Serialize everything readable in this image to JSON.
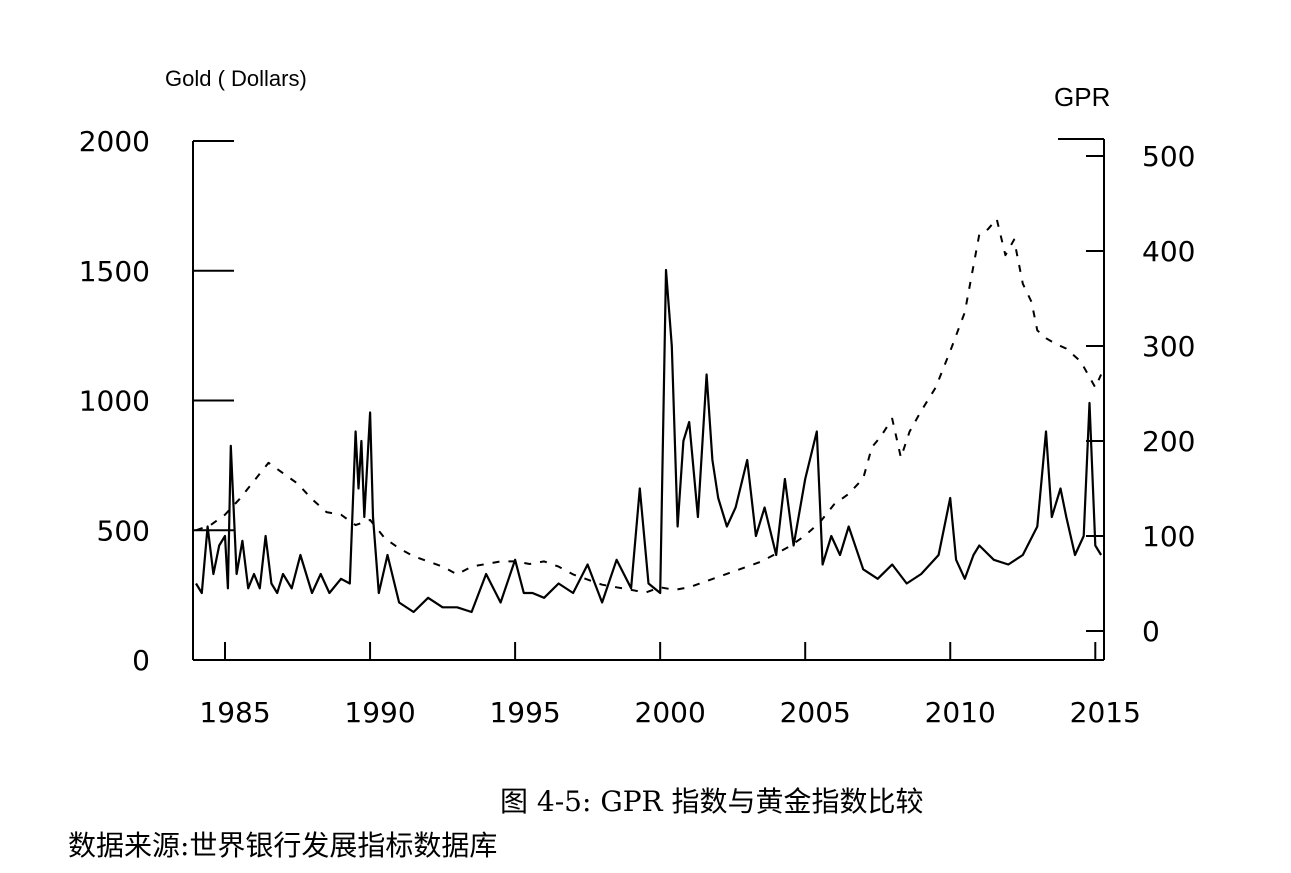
{
  "caption": "图 4-5: GPR 指数与黄金指数比较",
  "source": "数据来源:世界银行发展指标数据库",
  "chart_data": {
    "type": "line",
    "left_axis": {
      "label": "Gold ( Dollars)",
      "range": [
        0,
        2000
      ],
      "ticks": [
        0,
        500,
        1000,
        1500,
        2000
      ]
    },
    "right_axis": {
      "label": "GPR",
      "range": [
        0,
        500
      ],
      "ticks": [
        0,
        100,
        200,
        300,
        400,
        500
      ]
    },
    "x_axis": {
      "range": [
        1984,
        2015.3
      ],
      "ticks": [
        1985,
        1990,
        1995,
        2000,
        2005,
        2010,
        2015
      ]
    },
    "legend": "none",
    "grid": false,
    "series": [
      {
        "axis": "left",
        "style": "dashed",
        "x": [
          1984.0,
          1984.5,
          1985.0,
          1985.5,
          1986.0,
          1986.5,
          1987.0,
          1987.5,
          1988.0,
          1988.5,
          1989.0,
          1989.5,
          1990.0,
          1990.5,
          1991.0,
          1991.5,
          1992.0,
          1992.5,
          1993.0,
          1993.5,
          1994.0,
          1994.5,
          1995.0,
          1995.5,
          1996.0,
          1996.5,
          1997.0,
          1997.5,
          1998.0,
          1998.5,
          1999.0,
          1999.5,
          2000.0,
          2000.5,
          2001.0,
          2001.5,
          2002.0,
          2002.5,
          2003.0,
          2003.5,
          2004.0,
          2004.5,
          2005.0,
          2005.5,
          2006.0,
          2006.5,
          2007.0,
          2007.3,
          2007.6,
          2008.0,
          2008.3,
          2008.6,
          2009.0,
          2009.5,
          2010.0,
          2010.5,
          2010.8,
          2011.0,
          2011.3,
          2011.6,
          2011.9,
          2012.2,
          2012.5,
          2012.8,
          2013.0,
          2013.3,
          2013.6,
          2014.0,
          2014.5,
          2015.0,
          2015.2
        ],
        "values": [
          500,
          520,
          560,
          620,
          690,
          760,
          720,
          680,
          620,
          570,
          560,
          520,
          540,
          470,
          430,
          400,
          380,
          360,
          330,
          360,
          370,
          380,
          380,
          370,
          380,
          360,
          330,
          310,
          290,
          280,
          270,
          260,
          280,
          270,
          280,
          300,
          320,
          340,
          360,
          380,
          410,
          440,
          480,
          530,
          600,
          640,
          700,
          820,
          860,
          930,
          780,
          880,
          960,
          1050,
          1190,
          1340,
          1520,
          1640,
          1660,
          1700,
          1560,
          1620,
          1450,
          1380,
          1270,
          1240,
          1220,
          1200,
          1150,
          1050,
          1100
        ]
      },
      {
        "axis": "right",
        "style": "solid",
        "x": [
          1984.0,
          1984.2,
          1984.4,
          1984.6,
          1984.8,
          1985.0,
          1985.1,
          1985.2,
          1985.4,
          1985.6,
          1985.8,
          1986.0,
          1986.2,
          1986.4,
          1986.6,
          1986.8,
          1987.0,
          1987.3,
          1987.6,
          1988.0,
          1988.3,
          1988.6,
          1989.0,
          1989.3,
          1989.5,
          1989.6,
          1989.7,
          1989.8,
          1990.0,
          1990.1,
          1990.3,
          1990.6,
          1991.0,
          1991.5,
          1992.0,
          1992.5,
          1993.0,
          1993.5,
          1994.0,
          1994.5,
          1995.0,
          1995.3,
          1995.6,
          1996.0,
          1996.5,
          1997.0,
          1997.5,
          1998.0,
          1998.5,
          1999.0,
          1999.3,
          1999.6,
          2000.0,
          2000.2,
          2000.4,
          2000.6,
          2000.8,
          2001.0,
          2001.3,
          2001.6,
          2001.8,
          2002.0,
          2002.3,
          2002.6,
          2003.0,
          2003.3,
          2003.6,
          2004.0,
          2004.3,
          2004.6,
          2005.0,
          2005.4,
          2005.6,
          2005.9,
          2006.2,
          2006.5,
          2007.0,
          2007.5,
          2008.0,
          2008.5,
          2009.0,
          2009.3,
          2009.6,
          2010.0,
          2010.2,
          2010.5,
          2010.8,
          2011.0,
          2011.5,
          2012.0,
          2012.5,
          2013.0,
          2013.3,
          2013.5,
          2013.8,
          2014.0,
          2014.3,
          2014.6,
          2014.8,
          2015.0,
          2015.2
        ],
        "values": [
          50,
          40,
          110,
          60,
          90,
          100,
          45,
          195,
          60,
          95,
          45,
          60,
          45,
          100,
          50,
          40,
          60,
          45,
          80,
          40,
          60,
          40,
          55,
          50,
          210,
          150,
          200,
          120,
          230,
          120,
          40,
          80,
          30,
          20,
          35,
          25,
          25,
          20,
          60,
          30,
          75,
          40,
          40,
          35,
          50,
          40,
          70,
          30,
          75,
          45,
          150,
          50,
          40,
          380,
          300,
          110,
          200,
          220,
          120,
          270,
          180,
          140,
          110,
          130,
          180,
          100,
          130,
          80,
          160,
          90,
          160,
          210,
          70,
          100,
          80,
          110,
          65,
          55,
          70,
          50,
          60,
          70,
          80,
          140,
          75,
          55,
          80,
          90,
          75,
          70,
          80,
          110,
          210,
          120,
          150,
          120,
          80,
          100,
          240,
          90,
          80
        ]
      }
    ]
  }
}
